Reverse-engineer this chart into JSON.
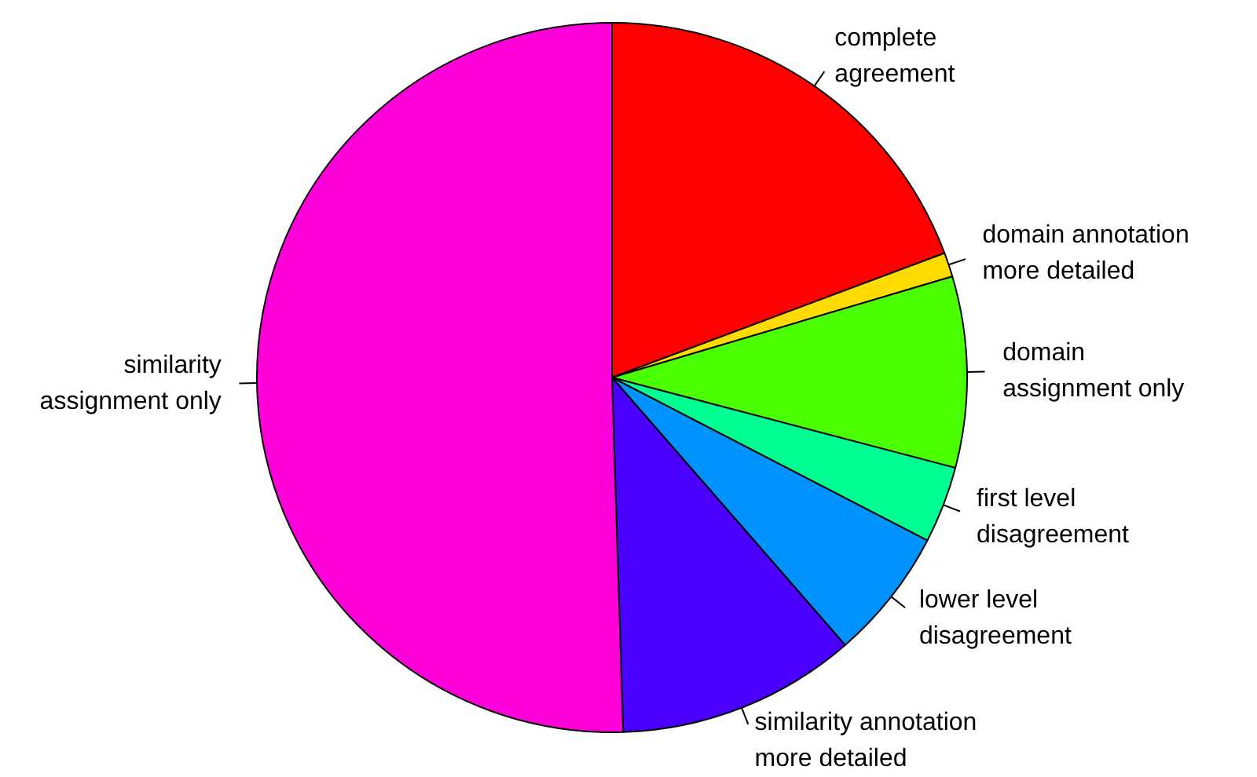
{
  "chart_data": {
    "type": "pie",
    "categories": [
      "complete\nagreement",
      "domain annotation\nmore detailed",
      "domain\nassignment only",
      "first level\ndisagreement",
      "lower level\ndisagreement",
      "similarity annotation\nmore detailed",
      "similarity\nassignment only"
    ],
    "values": [
      19.3,
      1.1,
      8.7,
      3.5,
      6.0,
      10.9,
      50.5
    ],
    "colors": [
      "#ff0000",
      "#ffdb00",
      "#49ff00",
      "#00ff92",
      "#0092ff",
      "#4900ff",
      "#ff00db"
    ]
  }
}
